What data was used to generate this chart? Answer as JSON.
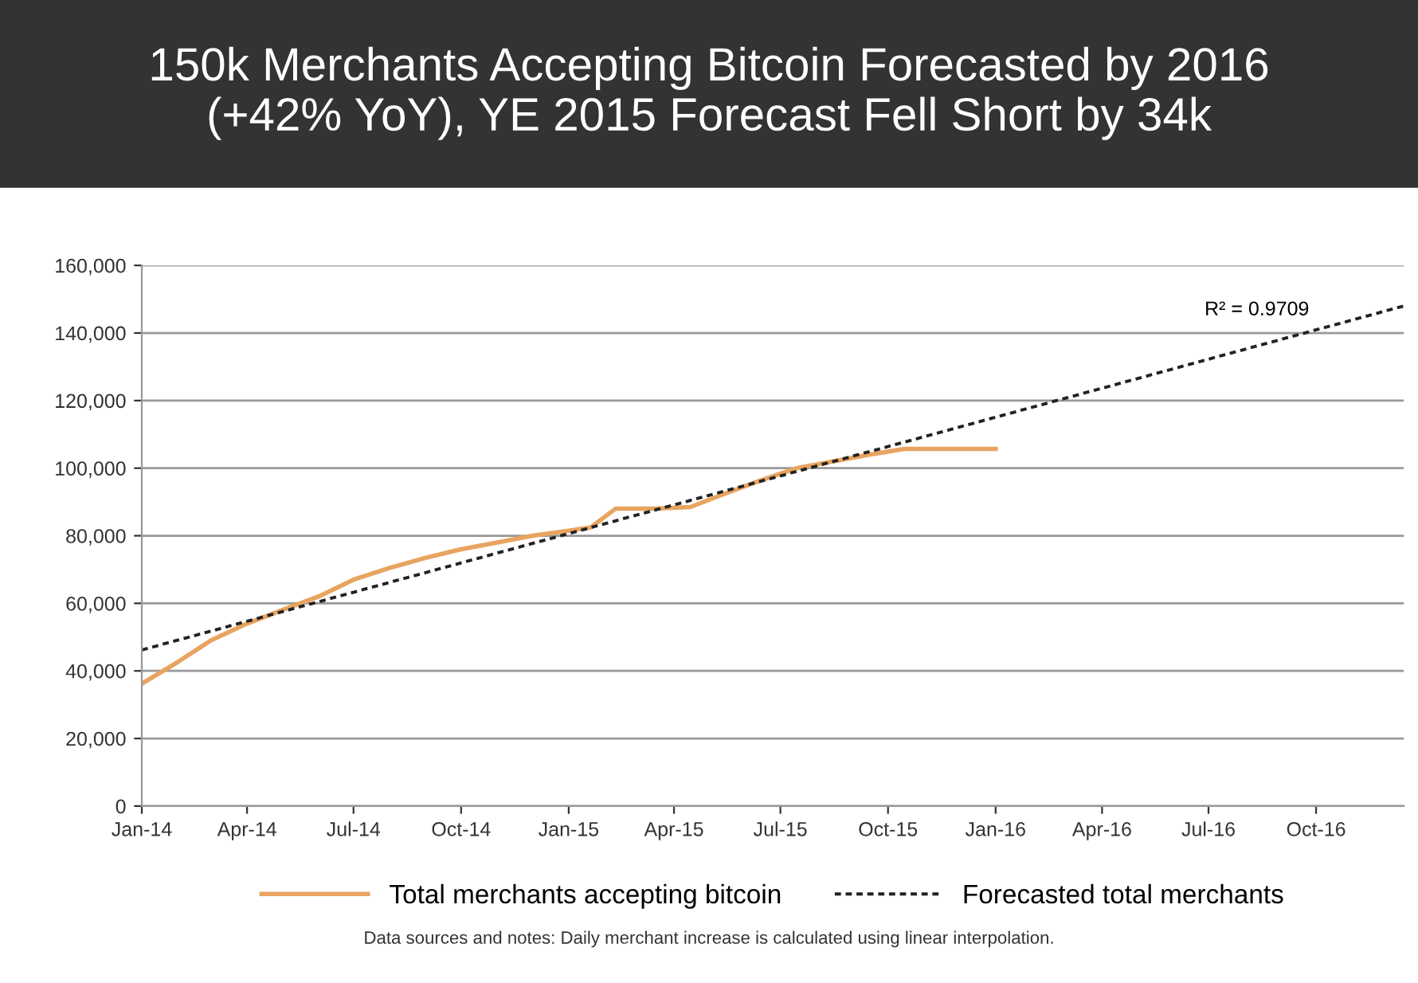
{
  "chart_data": {
    "type": "line",
    "title": "150k Merchants Accepting Bitcoin Forecasted by 2016\n(+42% YoY), YE 2015 Forecast Fell Short by 34k",
    "annotations": [
      "R² = 0.9709",
      "Data sources and notes: Daily merchant increase is calculated using linear interpolation."
    ],
    "series": [
      {
        "name": "Total merchants accepting bitcoin",
        "color": "#e8a460",
        "line_style": "solid",
        "x": [
          "2014-01-01",
          "2014-02-01",
          "2014-03-01",
          "2014-04-01",
          "2014-05-01",
          "2014-06-01",
          "2014-07-01",
          "2014-08-01",
          "2014-09-01",
          "2014-10-01",
          "2014-11-01",
          "2014-12-01",
          "2015-01-01",
          "2015-01-20",
          "2015-02-10",
          "2015-03-15",
          "2015-04-15",
          "2015-05-15",
          "2015-06-15",
          "2015-07-15",
          "2015-08-15",
          "2015-09-15",
          "2015-10-15",
          "2015-11-01",
          "2016-01-01"
        ],
        "values": [
          36200,
          42700,
          49000,
          54000,
          58000,
          62000,
          67000,
          70500,
          73500,
          76000,
          78000,
          80000,
          81500,
          82500,
          88000,
          88000,
          88500,
          92500,
          96500,
          100000,
          102000,
          104000,
          105700,
          105700,
          105700
        ]
      },
      {
        "name": "Forecasted total merchants",
        "color": "#222222",
        "line_style": "dashed",
        "x": [
          "2014-01-01",
          "2016-12-15"
        ],
        "values": [
          46200,
          148000
        ]
      }
    ],
    "xlim": [
      "2014-01-01",
      "2016-12-15"
    ],
    "xticks": [
      {
        "value": "2014-01-01",
        "label": "Jan-14"
      },
      {
        "value": "2014-04-01",
        "label": "Apr-14"
      },
      {
        "value": "2014-07-01",
        "label": "Jul-14"
      },
      {
        "value": "2014-10-01",
        "label": "Oct-14"
      },
      {
        "value": "2015-01-01",
        "label": "Jan-15"
      },
      {
        "value": "2015-04-01",
        "label": "Apr-15"
      },
      {
        "value": "2015-07-01",
        "label": "Jul-15"
      },
      {
        "value": "2015-10-01",
        "label": "Oct-15"
      },
      {
        "value": "2016-01-01",
        "label": "Jan-16"
      },
      {
        "value": "2016-04-01",
        "label": "Apr-16"
      },
      {
        "value": "2016-07-01",
        "label": "Jul-16"
      },
      {
        "value": "2016-10-01",
        "label": "Oct-16"
      }
    ],
    "ylim": [
      0,
      160000
    ],
    "yticks": [
      {
        "value": 0,
        "label": "0"
      },
      {
        "value": 20000,
        "label": "20,000"
      },
      {
        "value": 40000,
        "label": "40,000"
      },
      {
        "value": 60000,
        "label": "60,000"
      },
      {
        "value": 80000,
        "label": "80,000"
      },
      {
        "value": 100000,
        "label": "100,000"
      },
      {
        "value": 120000,
        "label": "120,000"
      },
      {
        "value": 140000,
        "label": "140,000"
      },
      {
        "value": 160000,
        "label": "160,000"
      }
    ],
    "grid": "y",
    "legend": "bottom",
    "marker": "none"
  }
}
